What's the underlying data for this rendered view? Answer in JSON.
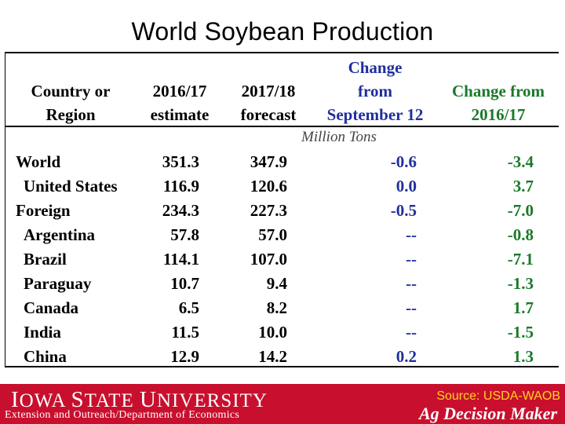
{
  "title": "World Soybean Production",
  "headers": {
    "country": [
      "Country or",
      "Region"
    ],
    "estimate": [
      "2016/17",
      "estimate"
    ],
    "forecast": [
      "2017/18",
      "forecast"
    ],
    "change_sep": [
      "Change",
      "from",
      "September 12"
    ],
    "change_prev": [
      "Change from",
      "2016/17"
    ]
  },
  "units": "Million Tons",
  "rows": [
    {
      "name": "World",
      "estimate": "351.3",
      "forecast": "347.9",
      "change_sep": "-0.6",
      "change_prev": "-3.4"
    },
    {
      "name": "United States",
      "estimate": "116.9",
      "forecast": "120.6",
      "change_sep": "0.0",
      "change_prev": "3.7"
    },
    {
      "name": "Foreign",
      "estimate": "234.3",
      "forecast": "227.3",
      "change_sep": "-0.5",
      "change_prev": "-7.0"
    },
    {
      "name": "Argentina",
      "estimate": "57.8",
      "forecast": "57.0",
      "change_sep": "--",
      "change_prev": "-0.8"
    },
    {
      "name": "Brazil",
      "estimate": "114.1",
      "forecast": "107.0",
      "change_sep": "--",
      "change_prev": "-7.1"
    },
    {
      "name": "Paraguay",
      "estimate": "10.7",
      "forecast": "9.4",
      "change_sep": "--",
      "change_prev": "-1.3"
    },
    {
      "name": "Canada",
      "estimate": "6.5",
      "forecast": "8.2",
      "change_sep": "--",
      "change_prev": "1.7"
    },
    {
      "name": "India",
      "estimate": "11.5",
      "forecast": "10.0",
      "change_sep": "--",
      "change_prev": "-1.5"
    },
    {
      "name": "China",
      "estimate": "12.9",
      "forecast": "14.2",
      "change_sep": "0.2",
      "change_prev": "1.3"
    }
  ],
  "footer": {
    "university_i": "I",
    "university_owa": "OWA ",
    "university_s": "S",
    "university_tate": "TATE ",
    "university_u": "U",
    "university_niversity": "NIVERSITY",
    "department": "Extension and Outreach/Department of Economics",
    "source": "Source: USDA-WAOB",
    "program": "Ag Decision Maker"
  },
  "colors": {
    "change_sep": "#1f2f9e",
    "change_prev": "#1a7a2a",
    "footer_bg": "#c8102e",
    "source_text": "#ffd21f"
  }
}
